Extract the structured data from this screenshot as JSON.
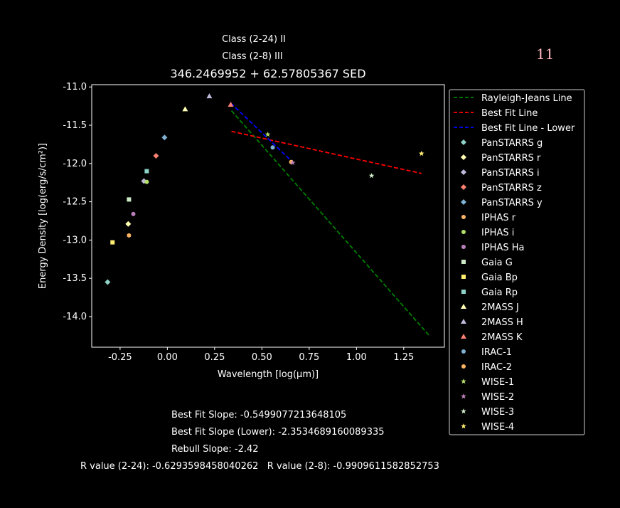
{
  "header": {
    "class_24": "Class (2-24) II",
    "class_8": "Class (2-8) III",
    "corner_number": "11"
  },
  "footer": {
    "best_fit": "Best Fit Slope: -0.5499077213648105",
    "best_fit_lower": "Best Fit Slope (Lower): -2.3534689160089335",
    "rebull": "Rebull Slope: -2.42",
    "r_values": "R value (2-24): -0.6293598458040262   R value (2-8): -0.9909611582852753"
  },
  "chart_data": {
    "type": "scatter",
    "title": "346.2469952 + 62.57805367 SED",
    "xlabel": "Wavelength [log(μm)]",
    "ylabel": "Energy Density [log(erg/s/cm²)]",
    "xlim": [
      -0.4,
      1.465
    ],
    "ylim": [
      -14.4,
      -10.97
    ],
    "xticks": [
      "-0.25",
      "0.00",
      "0.25",
      "0.50",
      "0.75",
      "1.00",
      "1.25"
    ],
    "xtick_values": [
      -0.25,
      0,
      0.25,
      0.5,
      0.75,
      1.0,
      1.25
    ],
    "yticks": [
      "-11.0",
      "-11.5",
      "-12.0",
      "-12.5",
      "-13.0",
      "-13.5",
      "-14.0"
    ],
    "ytick_values": [
      -11,
      -11.5,
      -12,
      -12.5,
      -13,
      -13.5,
      -14
    ],
    "grid": false,
    "legend_placement": "outside-right",
    "lines": [
      {
        "name": "Rayleigh-Jeans Line",
        "color": "#008000",
        "x": [
          0.339,
          1.382
        ],
        "y": [
          -11.31,
          -14.24
        ]
      },
      {
        "name": "Best Fit Line",
        "color": "#ff0000",
        "x": [
          0.339,
          1.344
        ],
        "y": [
          -11.58,
          -12.13
        ]
      },
      {
        "name": "Best Fit Line - Lower",
        "color": "#0000ff",
        "x": [
          0.335,
          0.666
        ],
        "y": [
          -11.21,
          -11.99
        ]
      }
    ],
    "series": [
      {
        "name": "PanSTARRS g",
        "marker": "diamond",
        "color": "#8dd3c7",
        "x": -0.316,
        "y": -13.55
      },
      {
        "name": "PanSTARRS r",
        "marker": "diamond",
        "color": "#ffffb3",
        "x": -0.207,
        "y": -12.79
      },
      {
        "name": "PanSTARRS i",
        "marker": "diamond",
        "color": "#bebada",
        "x": -0.124,
        "y": -12.23
      },
      {
        "name": "PanSTARRS z",
        "marker": "diamond",
        "color": "#fb8072",
        "x": -0.06,
        "y": -11.9
      },
      {
        "name": "PanSTARRS y",
        "marker": "diamond",
        "color": "#80b1d3",
        "x": -0.015,
        "y": -11.66
      },
      {
        "name": "IPHAS r",
        "marker": "circle",
        "color": "#fdb462",
        "x": -0.203,
        "y": -12.94
      },
      {
        "name": "IPHAS i",
        "marker": "circle",
        "color": "#b3de69",
        "x": -0.109,
        "y": -12.24
      },
      {
        "name": "IPHAS Ha",
        "marker": "circle",
        "color": "#bc80bd",
        "x": -0.18,
        "y": -12.66
      },
      {
        "name": "Gaia G",
        "marker": "square",
        "color": "#ccebc5",
        "x": -0.203,
        "y": -12.47
      },
      {
        "name": "Gaia Bp",
        "marker": "square",
        "color": "#ffed6f",
        "x": -0.29,
        "y": -13.03
      },
      {
        "name": "Gaia Rp",
        "marker": "square",
        "color": "#8dd3c7",
        "x": -0.109,
        "y": -12.1
      },
      {
        "name": "2MASS J",
        "marker": "triangle",
        "color": "#ffffb3",
        "x": 0.094,
        "y": -11.29
      },
      {
        "name": "2MASS H",
        "marker": "triangle",
        "color": "#bebada",
        "x": 0.222,
        "y": -11.12
      },
      {
        "name": "2MASS K",
        "marker": "triangle",
        "color": "#fb8072",
        "x": 0.335,
        "y": -11.23
      },
      {
        "name": "IRAC-1",
        "marker": "circle",
        "color": "#80b1d3",
        "x": 0.557,
        "y": -11.79
      },
      {
        "name": "IRAC-2",
        "marker": "circle",
        "color": "#fdb462",
        "x": 0.655,
        "y": -11.98
      },
      {
        "name": "WISE-1",
        "marker": "star",
        "color": "#b3de69",
        "x": 0.531,
        "y": -11.62
      },
      {
        "name": "WISE-2",
        "marker": "star",
        "color": "#bc80bd",
        "x": 0.663,
        "y": -11.99
      },
      {
        "name": "WISE-3",
        "marker": "star",
        "color": "#ccebc5",
        "x": 1.08,
        "y": -12.16
      },
      {
        "name": "WISE-4",
        "marker": "star",
        "color": "#ffed6f",
        "x": 1.344,
        "y": -11.87
      }
    ]
  }
}
